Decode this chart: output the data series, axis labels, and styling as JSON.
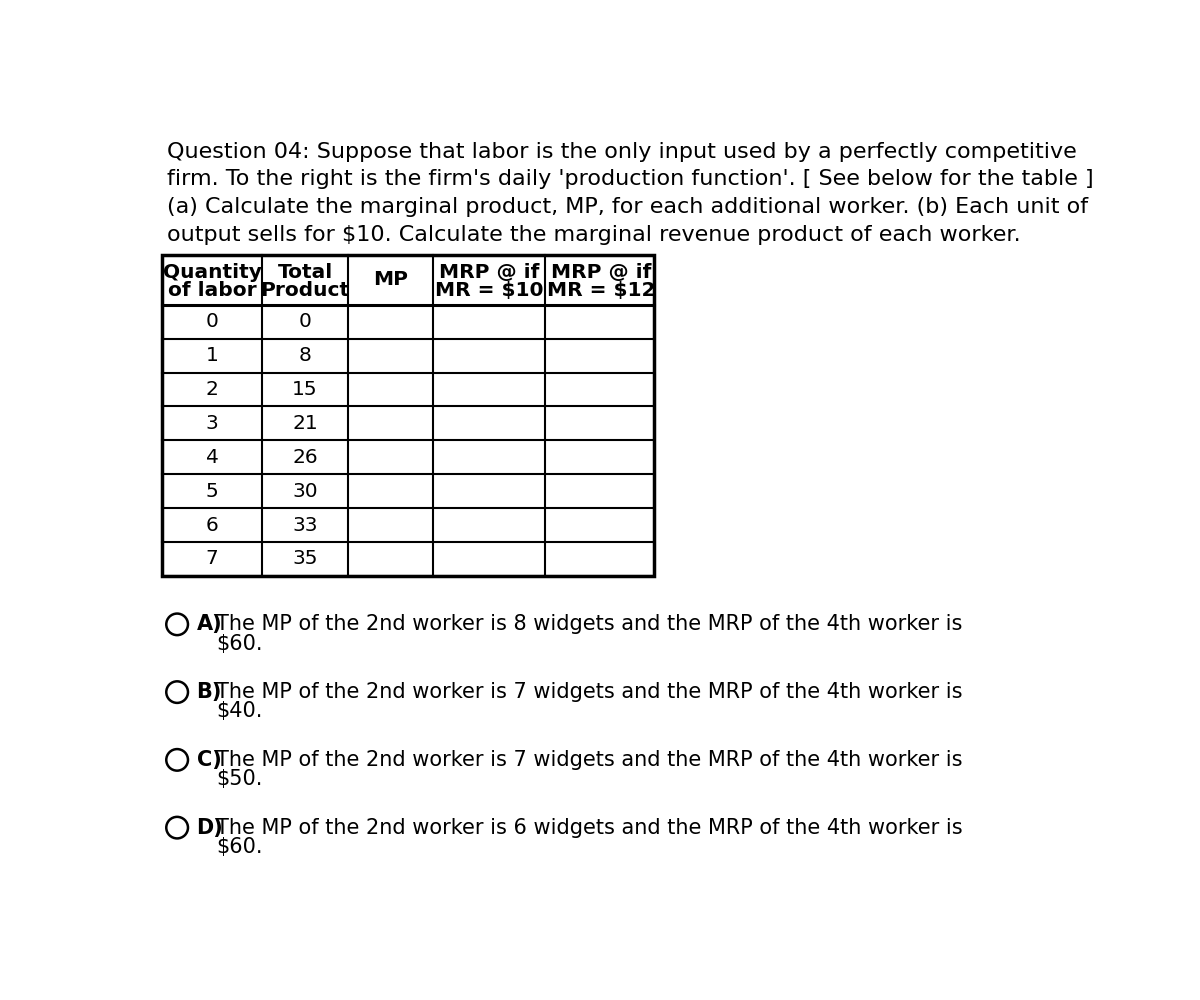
{
  "title_lines": [
    "Question 04: Suppose that labor is the only input used by a perfectly competitive",
    "firm. To the right is the firm's daily 'production function'. [ See below for the table ]",
    "(a) Calculate the marginal product, MP, for each additional worker. (b) Each unit of",
    "output sells for $10. Calculate the marginal revenue product of each worker."
  ],
  "col_labels_line1": [
    "Quantity",
    "Total",
    "MP",
    "MRP @ if",
    "MRP @ if"
  ],
  "col_labels_line2": [
    "of labor",
    "Product",
    "",
    "MR = $10",
    "MR = $12"
  ],
  "data_rows": [
    [
      0,
      0
    ],
    [
      1,
      8
    ],
    [
      2,
      15
    ],
    [
      3,
      21
    ],
    [
      4,
      26
    ],
    [
      5,
      30
    ],
    [
      6,
      33
    ],
    [
      7,
      35
    ]
  ],
  "choices": [
    {
      "label": "A)",
      "line1": "The MP of the 2nd worker is 8 widgets and the MRP of the 4th worker is",
      "line2": "$60."
    },
    {
      "label": "B)",
      "line1": "The MP of the 2nd worker is 7 widgets and the MRP of the 4th worker is",
      "line2": "$40."
    },
    {
      "label": "C)",
      "line1": "The MP of the 2nd worker is 7 widgets and the MRP of the 4th worker is",
      "line2": "$50."
    },
    {
      "label": "D)",
      "line1": "The MP of the 2nd worker is 6 widgets and the MRP of the 4th worker is",
      "line2": "$60."
    }
  ],
  "bg": "#ffffff",
  "fg": "#000000",
  "title_fontsize": 16,
  "table_fontsize": 14.5,
  "choice_fontsize": 15
}
